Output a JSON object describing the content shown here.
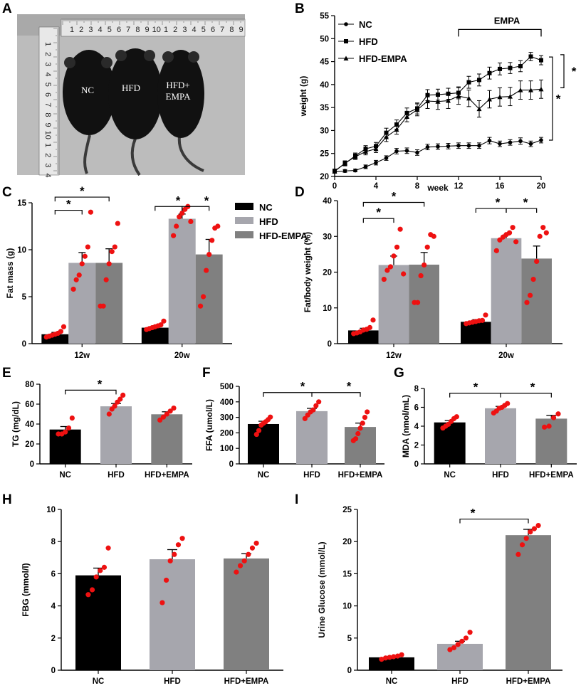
{
  "panel_letters": [
    "A",
    "B",
    "C",
    "D",
    "E",
    "F",
    "G",
    "H",
    "I"
  ],
  "photo": {
    "ruler_numbers_top": [
      "1",
      "2",
      "3",
      "4",
      "5",
      "6",
      "7",
      "8",
      "9",
      "10",
      "1",
      "2",
      "3",
      "4",
      "5",
      "6",
      "7",
      "8",
      "9"
    ],
    "ruler_numbers_side": [
      "1",
      "2",
      "3",
      "4",
      "5",
      "6",
      "7",
      "8",
      "9",
      "10",
      "1",
      "2",
      "3",
      "4"
    ],
    "mouse_labels": [
      "NC",
      "HFD",
      "HFD+",
      "EMPA"
    ]
  },
  "colors": {
    "nc": "#000000",
    "hfd": "#a6a6ad",
    "empa": "#808080",
    "dots": "#ee1111"
  },
  "chart_data": [
    {
      "panel": "B",
      "type": "line",
      "xlabel": "week",
      "ylabel": "weight (g)",
      "xlim": [
        0,
        20
      ],
      "ylim": [
        20,
        55
      ],
      "xticks": [
        0,
        4,
        8,
        12,
        16,
        20
      ],
      "yticks": [
        20,
        25,
        30,
        35,
        40,
        45,
        50,
        55
      ],
      "x": [
        0,
        1,
        2,
        3,
        4,
        5,
        6,
        7,
        8,
        9,
        10,
        11,
        12,
        13,
        14,
        15,
        16,
        17,
        18,
        19,
        20
      ],
      "series": [
        {
          "name": "NC",
          "marker": "circle",
          "values": [
            21,
            21.2,
            21.3,
            22.1,
            23,
            24,
            25.5,
            25.6,
            25.2,
            26.4,
            26.5,
            26.6,
            26.7,
            26.7,
            26.7,
            27.8,
            27.1,
            27.4,
            27.7,
            27.1,
            27.9
          ],
          "errors": [
            0.3,
            0.3,
            0.3,
            0.4,
            0.5,
            0.5,
            0.6,
            0.6,
            0.6,
            0.6,
            0.6,
            0.6,
            0.6,
            0.6,
            0.6,
            0.7,
            0.6,
            0.6,
            0.7,
            0.6,
            0.6
          ]
        },
        {
          "name": "HFD",
          "marker": "square",
          "values": [
            21.2,
            22.8,
            24.5,
            26,
            26.6,
            29.5,
            31.3,
            33.8,
            34.8,
            37.7,
            37.8,
            38,
            38.2,
            40.5,
            41,
            42.5,
            43.4,
            43.6,
            44,
            46.1,
            45.3
          ],
          "errors": [
            0.4,
            0.5,
            0.6,
            0.7,
            0.8,
            1,
            1,
            1.1,
            1.2,
            1.2,
            1.2,
            1.2,
            1.3,
            1.3,
            1.3,
            1.3,
            1.3,
            1.2,
            1.2,
            0.9,
            1
          ]
        },
        {
          "name": "HFD-EMPA",
          "marker": "triangle",
          "values": [
            21.1,
            22.9,
            24.3,
            25.4,
            26,
            28.6,
            30.2,
            33,
            34.5,
            36.4,
            36.3,
            36.5,
            37.5,
            37,
            34.7,
            36.8,
            37.3,
            37.4,
            38.8,
            38.8,
            39
          ],
          "errors": [
            0.4,
            0.5,
            0.6,
            0.7,
            0.8,
            1,
            1,
            1.1,
            1.3,
            1.6,
            1.7,
            1.7,
            1.8,
            1.8,
            1.8,
            1.9,
            2,
            2,
            2,
            2,
            2
          ]
        }
      ],
      "treatment_label": "EMPA",
      "significance": [
        "*",
        "*"
      ]
    },
    {
      "panel": "C",
      "type": "bar",
      "ylabel": "Fat mass (g)",
      "ylim": [
        0,
        15
      ],
      "yticks": [
        0,
        5,
        10,
        15
      ],
      "groups": [
        "12w",
        "20w"
      ],
      "legend": [
        "NC",
        "HFD",
        "HFD-EMPA"
      ],
      "series": [
        {
          "name": "NC",
          "values": [
            1.0,
            1.7
          ],
          "errors": [
            0.2,
            0.2
          ]
        },
        {
          "name": "HFD",
          "values": [
            8.6,
            13.3
          ],
          "errors": [
            1.1,
            0.5
          ]
        },
        {
          "name": "HFD-EMPA",
          "values": [
            8.6,
            9.5
          ],
          "errors": [
            1.5,
            1.6
          ]
        }
      ],
      "points": [
        [
          [
            0.7,
            0.8,
            0.9,
            1.0,
            1.1,
            1.3,
            1.8
          ],
          [
            1.5,
            1.6,
            1.7,
            1.8,
            1.9,
            2.0,
            2.4
          ]
        ],
        [
          [
            5.8,
            6.8,
            7.3,
            8.5,
            9.3,
            10.3,
            14.0
          ],
          [
            11.5,
            12.5,
            13.5,
            13.9,
            14.3,
            14.6,
            13.0
          ]
        ],
        [
          [
            4.0,
            4.0,
            6.8,
            8.5,
            9.8,
            10.3,
            12.8
          ],
          [
            4.0,
            5.0,
            7.8,
            9.5,
            11.0,
            12.3,
            12.5
          ]
        ]
      ],
      "significance": [
        "*",
        "*",
        "*",
        "*"
      ]
    },
    {
      "panel": "D",
      "type": "bar",
      "ylabel": "Fat/body weight (%)",
      "ylim": [
        0,
        40
      ],
      "yticks": [
        0,
        10,
        20,
        30,
        40
      ],
      "groups": [
        "12w",
        "20w"
      ],
      "series": [
        {
          "name": "NC",
          "values": [
            3.7,
            6.1
          ],
          "errors": [
            0.6,
            0.6
          ]
        },
        {
          "name": "HFD",
          "values": [
            22.0,
            29.5
          ],
          "errors": [
            2.5,
            0.9
          ]
        },
        {
          "name": "HFD-EMPA",
          "values": [
            22.1,
            23.8
          ],
          "errors": [
            3.4,
            3.5
          ]
        }
      ],
      "points": [
        [
          [
            2.8,
            3.0,
            3.3,
            3.8,
            4.0,
            4.5,
            6.6
          ],
          [
            5.6,
            5.8,
            6.0,
            6.2,
            6.4,
            6.5,
            8.0
          ]
        ],
        [
          [
            18.0,
            20.5,
            21.5,
            24.5,
            27.0,
            32.0,
            19.5
          ],
          [
            26.0,
            29.0,
            29.8,
            30.5,
            31.0,
            32.5,
            28.5
          ]
        ],
        [
          [
            11.5,
            11.5,
            19.0,
            22.0,
            27.0,
            30.5,
            30.0
          ],
          [
            11.5,
            13.5,
            18.0,
            23.0,
            30.0,
            32.5,
            31.0
          ]
        ]
      ],
      "significance": [
        "*",
        "*",
        "*",
        "*"
      ]
    },
    {
      "panel": "E",
      "type": "bar",
      "ylabel": "TG (mg/dL)",
      "ylim": [
        0,
        80
      ],
      "yticks": [
        0,
        20,
        40,
        60,
        80
      ],
      "categories": [
        "NC",
        "HFD",
        "HFD+EMPA"
      ],
      "values": [
        34.5,
        57.8,
        49.8
      ],
      "errors": [
        3.0,
        2.8,
        2.5
      ],
      "points": [
        [
          30,
          30,
          32,
          36,
          46
        ],
        [
          50,
          55,
          58,
          62,
          65,
          69
        ],
        [
          44,
          47,
          50,
          53,
          56
        ]
      ],
      "significance": [
        "*"
      ]
    },
    {
      "panel": "F",
      "type": "bar",
      "ylabel": "FFA (umol/L)",
      "ylim": [
        0,
        500
      ],
      "yticks": [
        0,
        100,
        200,
        300,
        400,
        500
      ],
      "categories": [
        "NC",
        "HFD",
        "HFD+EMPA"
      ],
      "values": [
        257,
        340,
        238
      ],
      "errors": [
        18,
        18,
        25
      ],
      "points": [
        [
          190,
          215,
          250,
          262,
          272,
          285,
          302
        ],
        [
          292,
          315,
          335,
          348,
          375,
          400
        ],
        [
          150,
          162,
          195,
          230,
          262,
          300,
          335
        ]
      ],
      "significance": [
        "*",
        "*"
      ]
    },
    {
      "panel": "G",
      "type": "bar",
      "ylabel": "MDA (nmol/mL)",
      "ylim": [
        0,
        8
      ],
      "yticks": [
        0,
        2,
        4,
        6,
        8
      ],
      "categories": [
        "NC",
        "HFD",
        "HFD+EMPA"
      ],
      "values": [
        4.4,
        5.9,
        4.8
      ],
      "errors": [
        0.2,
        0.2,
        0.35
      ],
      "points": [
        [
          3.8,
          4.0,
          4.2,
          4.5,
          4.8,
          5.0
        ],
        [
          5.4,
          5.6,
          5.9,
          6.0,
          6.2,
          6.4
        ],
        [
          3.9,
          4.0,
          4.9,
          5.3
        ]
      ],
      "significance": [
        "*",
        "*"
      ]
    },
    {
      "panel": "H",
      "type": "bar",
      "ylabel": "FBG (mmol/l)",
      "ylim": [
        0,
        10
      ],
      "yticks": [
        0,
        2,
        4,
        6,
        8,
        10
      ],
      "categories": [
        "NC",
        "HFD",
        "HFD+EMPA"
      ],
      "values": [
        5.9,
        6.9,
        6.95
      ],
      "errors": [
        0.45,
        0.6,
        0.3
      ],
      "points": [
        [
          4.7,
          5.0,
          5.8,
          6.2,
          6.4,
          7.6
        ],
        [
          4.2,
          5.6,
          6.8,
          7.2,
          7.8,
          8.2
        ],
        [
          6.1,
          6.5,
          6.8,
          7.2,
          7.6,
          7.9
        ]
      ],
      "significance": []
    },
    {
      "panel": "I",
      "type": "bar",
      "ylabel": "Urine Glucose (mmol/L)",
      "ylim": [
        0,
        25
      ],
      "yticks": [
        0,
        5,
        10,
        15,
        20,
        25
      ],
      "categories": [
        "NC",
        "HFD",
        "HFD+EMPA"
      ],
      "values": [
        2.0,
        4.1,
        21.0
      ],
      "errors": [
        0.15,
        0.4,
        0.9
      ],
      "points": [
        [
          1.7,
          1.9,
          2.0,
          2.1,
          2.2,
          2.4
        ],
        [
          3.2,
          3.5,
          4.0,
          4.5,
          5.0,
          5.9
        ],
        [
          18.0,
          19.5,
          20.5,
          21.5,
          22.0,
          22.5
        ]
      ],
      "significance": [
        "*"
      ]
    }
  ]
}
